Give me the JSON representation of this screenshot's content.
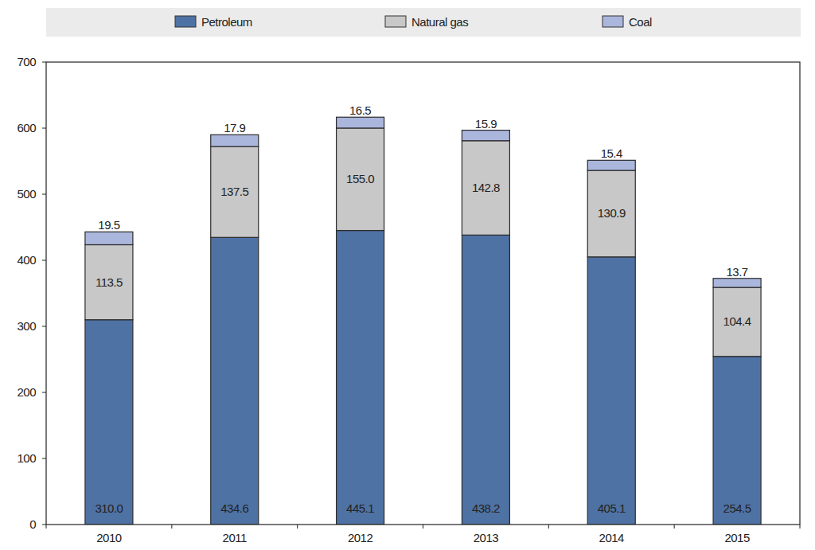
{
  "chart_data": {
    "type": "bar",
    "stacked": true,
    "data_labels": true,
    "legend": "top",
    "grid": false,
    "categories": [
      "2010",
      "2011",
      "2012",
      "2013",
      "2014",
      "2015"
    ],
    "ylim": [
      0,
      700
    ],
    "yticks": [
      0,
      100,
      200,
      300,
      400,
      500,
      600,
      700
    ],
    "series": [
      {
        "name": "Petroleum",
        "color": "#4f72a4",
        "values": [
          310.0,
          434.6,
          445.1,
          438.2,
          405.1,
          254.5
        ],
        "value_labels": [
          "310.0",
          "434.6",
          "445.1",
          "438.2",
          "405.1",
          "254.5"
        ]
      },
      {
        "name": "Natural gas",
        "color": "#c8c8c8",
        "values": [
          113.5,
          137.5,
          155.0,
          142.8,
          130.9,
          104.4
        ],
        "value_labels": [
          "113.5",
          "137.5",
          "155.0",
          "142.8",
          "130.9",
          "104.4"
        ]
      },
      {
        "name": "Coal",
        "color": "#aab6dc",
        "values": [
          19.5,
          17.9,
          16.5,
          15.9,
          15.4,
          13.7
        ],
        "value_labels": [
          "19.5",
          "17.9",
          "16.5",
          "15.9",
          "15.4",
          "13.7"
        ]
      }
    ]
  }
}
